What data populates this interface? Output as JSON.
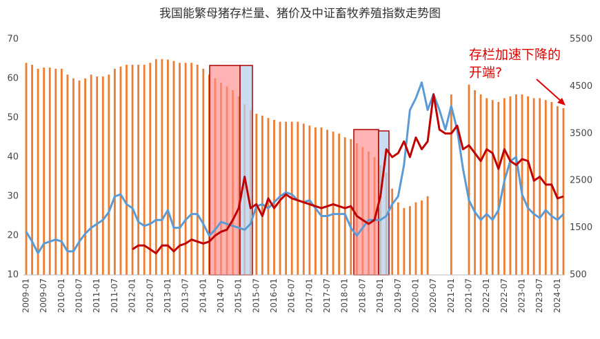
{
  "chart_data": {
    "type": "bar-line",
    "title": "我国能繁母猪存栏量、猪价及中证畜牧养殖指数走势图",
    "annotation": [
      "存栏加速下降的",
      "开端?"
    ],
    "categories": [
      "2009-01",
      "2009-03",
      "2009-05",
      "2009-07",
      "2009-09",
      "2009-11",
      "2010-01",
      "2010-03",
      "2010-05",
      "2010-07",
      "2010-09",
      "2010-11",
      "2011-01",
      "2011-03",
      "2011-05",
      "2011-07",
      "2011-09",
      "2011-11",
      "2012-01",
      "2012-03",
      "2012-05",
      "2012-07",
      "2012-09",
      "2012-11",
      "2013-01",
      "2013-03",
      "2013-05",
      "2013-07",
      "2013-09",
      "2013-11",
      "2014-01",
      "2014-03",
      "2014-05",
      "2014-07",
      "2014-09",
      "2014-11",
      "2015-01",
      "2015-03",
      "2015-05",
      "2015-07",
      "2015-09",
      "2015-11",
      "2016-01",
      "2016-03",
      "2016-05",
      "2016-07",
      "2016-09",
      "2016-11",
      "2017-01",
      "2017-03",
      "2017-05",
      "2017-07",
      "2017-09",
      "2017-11",
      "2018-01",
      "2018-03",
      "2018-05",
      "2018-07",
      "2018-09",
      "2018-11",
      "2019-01",
      "2019-03",
      "2019-05",
      "2019-07",
      "2019-09",
      "2019-11",
      "2020-01",
      "2020-03",
      "2020-05",
      "2020-07",
      "2020-09",
      "2020-11",
      "2021-01",
      "2021-03",
      "2021-05",
      "2021-07",
      "2021-09",
      "2021-11",
      "2022-01",
      "2022-03",
      "2022-05",
      "2022-07",
      "2022-09",
      "2022-11",
      "2023-01",
      "2023-03",
      "2023-05",
      "2023-07",
      "2023-09",
      "2023-11",
      "2024-01",
      "2024-03"
    ],
    "xticks": [
      "2009-01",
      "2009-07",
      "2010-01",
      "2010-07",
      "2011-01",
      "2011-07",
      "2012-01",
      "2012-07",
      "2013-01",
      "2013-07",
      "2014-01",
      "2014-07",
      "2015-01",
      "2015-07",
      "2016-01",
      "2016-07",
      "2017-01",
      "2017-07",
      "2018-01",
      "2018-07",
      "2019-01",
      "2019-07",
      "2020-01",
      "2020-07",
      "2021-01",
      "2021-07",
      "2022-01",
      "2022-07",
      "2023-01",
      "2023-07",
      "2024-01"
    ],
    "ylim": [
      10,
      70
    ],
    "yticks": [
      10,
      20,
      30,
      40,
      50,
      60,
      70
    ],
    "y2lim": [
      500,
      5500
    ],
    "y2ticks": [
      500,
      1500,
      2500,
      3500,
      4500,
      5500
    ],
    "series": [
      {
        "kind": "bar",
        "axis": "y2",
        "color": "#ed7d31",
        "values": [
          5000,
          4960,
          4875,
          4900,
          4900,
          4875,
          4875,
          4750,
          4670,
          4625,
          4670,
          4750,
          4710,
          4710,
          4750,
          4875,
          4920,
          4960,
          4960,
          4960,
          4960,
          5000,
          5080,
          5080,
          5070,
          5040,
          5000,
          5000,
          5000,
          4960,
          4875,
          4750,
          4670,
          4580,
          4500,
          4420,
          4290,
          4120,
          4000,
          3920,
          3880,
          3830,
          3790,
          3750,
          3750,
          3750,
          3750,
          3710,
          3670,
          3630,
          3630,
          3580,
          3540,
          3500,
          3420,
          3380,
          3290,
          3210,
          3120,
          3000,
          2830,
          2670,
          2330,
          2040,
          1920,
          1960,
          2040,
          2080,
          2170,
          null,
          null,
          null,
          4330,
          null,
          null,
          4540,
          4420,
          4330,
          4250,
          4210,
          4170,
          4250,
          4290,
          4330,
          4330,
          4290,
          4250,
          4250,
          4210,
          4170,
          4080,
          4040
        ]
      },
      {
        "kind": "line",
        "axis": "y",
        "color": "#5b9bd5",
        "values": [
          21,
          18.5,
          15.5,
          18,
          18.5,
          19,
          18.5,
          16,
          16,
          18.5,
          20.5,
          22,
          23,
          24,
          26,
          30,
          30.5,
          28,
          27,
          23.5,
          22.5,
          23,
          24,
          24,
          26.5,
          22,
          22,
          24,
          25.5,
          25.5,
          23,
          20,
          21.5,
          23.5,
          23,
          22.5,
          22,
          21.5,
          23,
          27.5,
          28,
          27,
          28.5,
          30,
          31,
          30.5,
          29,
          28.5,
          29,
          27,
          25,
          25,
          25.5,
          25.5,
          25.5,
          22,
          20,
          22,
          24,
          24,
          24,
          25,
          28,
          30,
          38,
          52,
          55,
          59,
          52,
          56,
          52,
          47,
          53,
          47,
          37,
          29,
          26,
          24,
          25.5,
          24,
          26.5,
          34,
          39,
          40,
          30.5,
          27,
          25.5,
          24.5,
          26.5,
          25,
          24,
          25.5
        ]
      },
      {
        "kind": "line",
        "axis": "y",
        "color": "#c00000",
        "values": [
          null,
          null,
          null,
          null,
          null,
          null,
          null,
          null,
          null,
          null,
          null,
          null,
          null,
          null,
          null,
          null,
          null,
          null,
          16.5,
          17.5,
          17.5,
          16.5,
          15.5,
          17.5,
          17.5,
          16,
          17.5,
          18,
          19,
          18.5,
          18,
          18.5,
          20,
          21,
          21.5,
          24,
          27,
          35,
          27,
          28,
          25,
          29.5,
          27,
          29,
          30.5,
          29.5,
          29,
          28.5,
          28,
          27.5,
          27,
          27.5,
          28,
          27.5,
          27,
          27.5,
          25,
          24,
          23,
          24,
          30,
          42,
          40,
          41,
          44,
          40,
          45,
          42,
          44,
          56,
          47,
          46,
          46,
          48,
          42,
          43,
          41,
          39,
          42,
          41,
          37,
          42,
          39,
          38,
          39.5,
          39,
          34,
          35,
          33,
          33,
          29.5,
          30
        ]
      }
    ]
  }
}
